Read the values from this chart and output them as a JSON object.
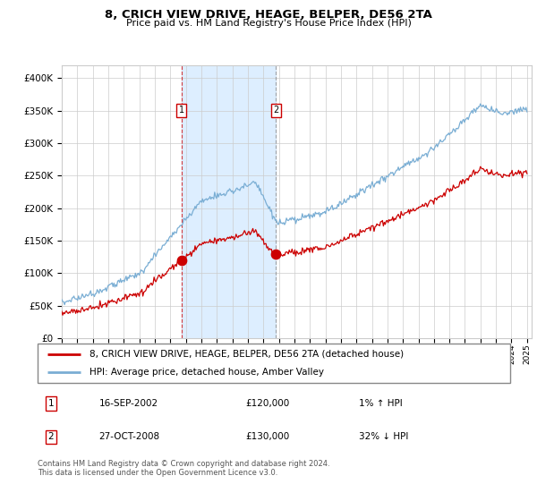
{
  "title": "8, CRICH VIEW DRIVE, HEAGE, BELPER, DE56 2TA",
  "subtitle": "Price paid vs. HM Land Registry's House Price Index (HPI)",
  "legend_line1": "8, CRICH VIEW DRIVE, HEAGE, BELPER, DE56 2TA (detached house)",
  "legend_line2": "HPI: Average price, detached house, Amber Valley",
  "transaction1_date": "16-SEP-2002",
  "transaction1_price": "£120,000",
  "transaction1_hpi": "1% ↑ HPI",
  "transaction2_date": "27-OCT-2008",
  "transaction2_price": "£130,000",
  "transaction2_hpi": "32% ↓ HPI",
  "footer": "Contains HM Land Registry data © Crown copyright and database right 2024.\nThis data is licensed under the Open Government Licence v3.0.",
  "red_color": "#cc0000",
  "blue_color": "#7aaed4",
  "shade_color": "#ddeeff",
  "grid_color": "#cccccc",
  "background_color": "#ffffff",
  "ylim": [
    0,
    420000
  ],
  "year_start": 1995,
  "year_end": 2025,
  "transaction1_year": 2002.71,
  "transaction1_value": 120000,
  "transaction2_year": 2008.82,
  "transaction2_value": 130000
}
